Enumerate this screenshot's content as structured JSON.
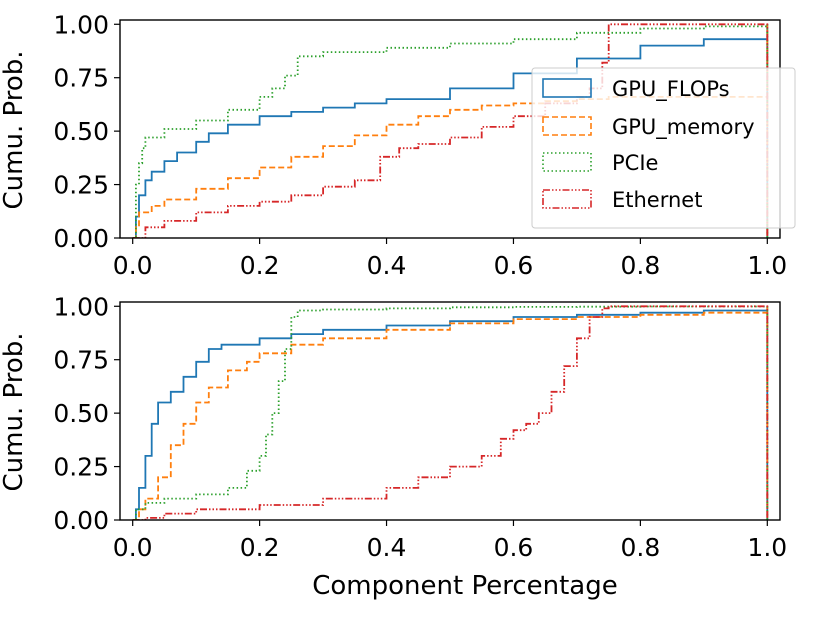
{
  "chart_data": [
    {
      "type": "line",
      "title": "",
      "xlabel": "",
      "ylabel": "Cumu. Prob.",
      "xlim": [
        -0.02,
        1.02
      ],
      "ylim": [
        0,
        1.02
      ],
      "xticks": [
        "0.0",
        "0.2",
        "0.4",
        "0.6",
        "0.8",
        "1.0"
      ],
      "yticks": [
        "0.00",
        "0.25",
        "0.50",
        "0.75",
        "1.00"
      ],
      "legend": {
        "placement": "right",
        "entries": [
          "GPU_FLOPs",
          "GPU_memory",
          "PCIe",
          "Ethernet"
        ]
      },
      "series": [
        {
          "name": "GPU_FLOPs",
          "color": "#1f77b4",
          "dash": "solid",
          "x": [
            0,
            0.005,
            0.01,
            0.02,
            0.03,
            0.05,
            0.07,
            0.1,
            0.12,
            0.15,
            0.2,
            0.25,
            0.3,
            0.35,
            0.4,
            0.5,
            0.6,
            0.7,
            0.8,
            0.9,
            1.0
          ],
          "y": [
            0,
            0.1,
            0.2,
            0.27,
            0.31,
            0.36,
            0.4,
            0.45,
            0.49,
            0.53,
            0.57,
            0.59,
            0.61,
            0.63,
            0.65,
            0.7,
            0.77,
            0.84,
            0.9,
            0.93,
            1.0
          ]
        },
        {
          "name": "GPU_memory",
          "color": "#ff7f0e",
          "dash": "dashed",
          "x": [
            0,
            0.005,
            0.01,
            0.03,
            0.05,
            0.1,
            0.15,
            0.2,
            0.25,
            0.3,
            0.35,
            0.4,
            0.45,
            0.5,
            0.55,
            0.6,
            0.65,
            0.7,
            0.75,
            1.0
          ],
          "y": [
            0,
            0.05,
            0.12,
            0.15,
            0.18,
            0.23,
            0.28,
            0.33,
            0.38,
            0.43,
            0.48,
            0.53,
            0.57,
            0.6,
            0.62,
            0.63,
            0.64,
            0.65,
            0.66,
            1.0
          ]
        },
        {
          "name": "PCIe",
          "color": "#2ca02c",
          "dash": "dotted",
          "x": [
            0,
            0.005,
            0.01,
            0.015,
            0.02,
            0.05,
            0.1,
            0.15,
            0.2,
            0.22,
            0.24,
            0.26,
            0.3,
            0.4,
            0.5,
            0.6,
            0.7,
            0.8,
            0.9,
            1.0
          ],
          "y": [
            0,
            0.25,
            0.35,
            0.42,
            0.47,
            0.51,
            0.55,
            0.6,
            0.66,
            0.7,
            0.76,
            0.85,
            0.87,
            0.89,
            0.91,
            0.93,
            0.96,
            0.98,
            0.99,
            1.0
          ]
        },
        {
          "name": "Ethernet",
          "color": "#d62728",
          "dash": "dashdotdot",
          "x": [
            0,
            0.02,
            0.05,
            0.1,
            0.15,
            0.2,
            0.25,
            0.3,
            0.35,
            0.38,
            0.39,
            0.42,
            0.45,
            0.5,
            0.55,
            0.6,
            0.65,
            0.7,
            0.72,
            0.74,
            0.75,
            1.0
          ],
          "y": [
            0,
            0.05,
            0.08,
            0.12,
            0.15,
            0.17,
            0.2,
            0.24,
            0.27,
            0.27,
            0.38,
            0.42,
            0.44,
            0.47,
            0.52,
            0.57,
            0.63,
            0.66,
            0.7,
            0.82,
            1.0,
            1.0
          ]
        }
      ]
    },
    {
      "type": "line",
      "title": "",
      "xlabel": "Component Percentage",
      "ylabel": "Cumu. Prob.",
      "xlim": [
        -0.02,
        1.02
      ],
      "ylim": [
        0,
        1.02
      ],
      "xticks": [
        "0.0",
        "0.2",
        "0.4",
        "0.6",
        "0.8",
        "1.0"
      ],
      "yticks": [
        "0.00",
        "0.25",
        "0.50",
        "0.75",
        "1.00"
      ],
      "series": [
        {
          "name": "GPU_FLOPs",
          "color": "#1f77b4",
          "dash": "solid",
          "x": [
            0,
            0.005,
            0.01,
            0.02,
            0.03,
            0.04,
            0.06,
            0.08,
            0.1,
            0.12,
            0.14,
            0.2,
            0.25,
            0.3,
            0.4,
            0.5,
            0.6,
            0.7,
            0.8,
            0.9,
            1.0
          ],
          "y": [
            0,
            0.05,
            0.15,
            0.3,
            0.45,
            0.55,
            0.6,
            0.67,
            0.74,
            0.8,
            0.82,
            0.85,
            0.87,
            0.89,
            0.91,
            0.93,
            0.95,
            0.96,
            0.97,
            0.98,
            1.0
          ]
        },
        {
          "name": "GPU_memory",
          "color": "#ff7f0e",
          "dash": "dashed",
          "x": [
            0,
            0.01,
            0.02,
            0.04,
            0.06,
            0.08,
            0.1,
            0.12,
            0.15,
            0.18,
            0.2,
            0.25,
            0.3,
            0.4,
            0.5,
            0.6,
            0.7,
            0.8,
            0.9,
            1.0
          ],
          "y": [
            0,
            0.05,
            0.1,
            0.2,
            0.35,
            0.45,
            0.55,
            0.62,
            0.7,
            0.74,
            0.78,
            0.82,
            0.85,
            0.89,
            0.92,
            0.94,
            0.95,
            0.96,
            0.97,
            1.0
          ]
        },
        {
          "name": "PCIe",
          "color": "#2ca02c",
          "dash": "dotted",
          "x": [
            0,
            0.005,
            0.02,
            0.05,
            0.1,
            0.15,
            0.18,
            0.2,
            0.21,
            0.22,
            0.23,
            0.24,
            0.25,
            0.26,
            0.3,
            0.4,
            0.5,
            0.6,
            0.7,
            0.8,
            1.0
          ],
          "y": [
            0,
            0.05,
            0.08,
            0.1,
            0.12,
            0.15,
            0.23,
            0.3,
            0.4,
            0.5,
            0.65,
            0.8,
            0.95,
            0.98,
            0.985,
            0.99,
            0.995,
            0.997,
            0.998,
            0.999,
            1.0
          ]
        },
        {
          "name": "Ethernet",
          "color": "#d62728",
          "dash": "dashdotdot",
          "x": [
            0,
            0.02,
            0.05,
            0.1,
            0.2,
            0.3,
            0.4,
            0.45,
            0.5,
            0.55,
            0.58,
            0.6,
            0.62,
            0.64,
            0.66,
            0.68,
            0.7,
            0.72,
            0.74,
            0.75,
            1.0
          ],
          "y": [
            0,
            0.01,
            0.03,
            0.05,
            0.07,
            0.1,
            0.15,
            0.2,
            0.25,
            0.3,
            0.38,
            0.42,
            0.45,
            0.5,
            0.6,
            0.72,
            0.85,
            0.95,
            0.99,
            1.0,
            1.0
          ]
        }
      ]
    }
  ]
}
